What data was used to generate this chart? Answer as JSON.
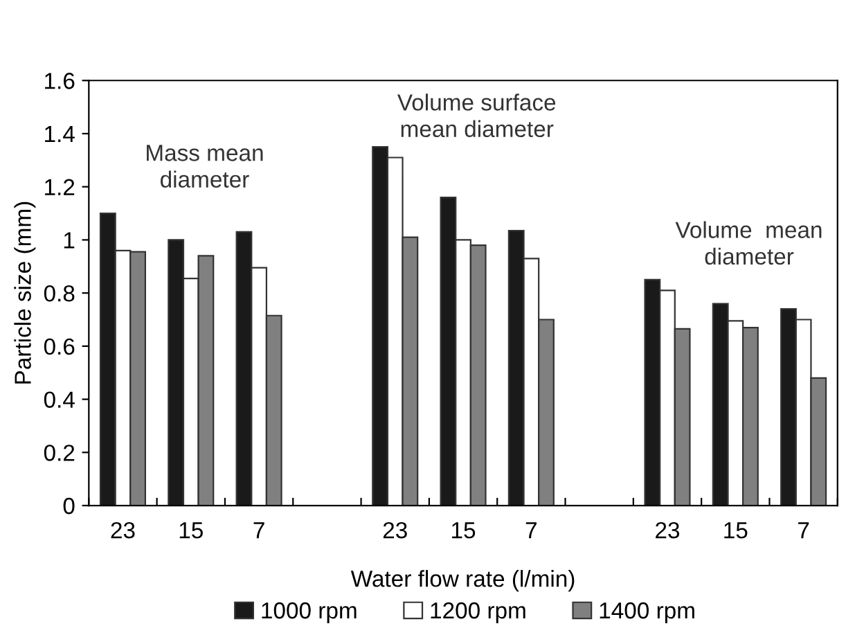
{
  "chart_data": {
    "type": "bar",
    "xlabel": "Water flow rate (l/min)",
    "ylabel": "Particle size (mm)",
    "categories": [
      "23",
      "15",
      "7",
      null,
      "23",
      "15",
      "7",
      null,
      "23",
      "15",
      "7"
    ],
    "series": [
      {
        "name": "1000 rpm",
        "color": "#1a1a1a",
        "values": [
          1.1,
          1.0,
          1.03,
          null,
          1.35,
          1.16,
          1.035,
          null,
          0.85,
          0.76,
          0.74
        ]
      },
      {
        "name": "1200 rpm",
        "color": "#ffffff",
        "values": [
          0.96,
          0.855,
          0.895,
          null,
          1.31,
          1.0,
          0.93,
          null,
          0.81,
          0.695,
          0.7
        ]
      },
      {
        "name": "1400 rpm",
        "color": "#808080",
        "values": [
          0.955,
          0.94,
          0.715,
          null,
          1.01,
          0.98,
          0.7,
          null,
          0.665,
          0.67,
          0.48
        ]
      }
    ],
    "ylim": [
      0,
      1.6
    ],
    "yticks": [
      0,
      0.2,
      0.4,
      0.6,
      0.8,
      1,
      1.2,
      1.4,
      1.6
    ],
    "annotations": [
      "Mass mean\ndiameter",
      "Volume surface\nmean diameter",
      "Volume  mean\ndiameter"
    ],
    "grid": false,
    "legend": "bottom"
  }
}
